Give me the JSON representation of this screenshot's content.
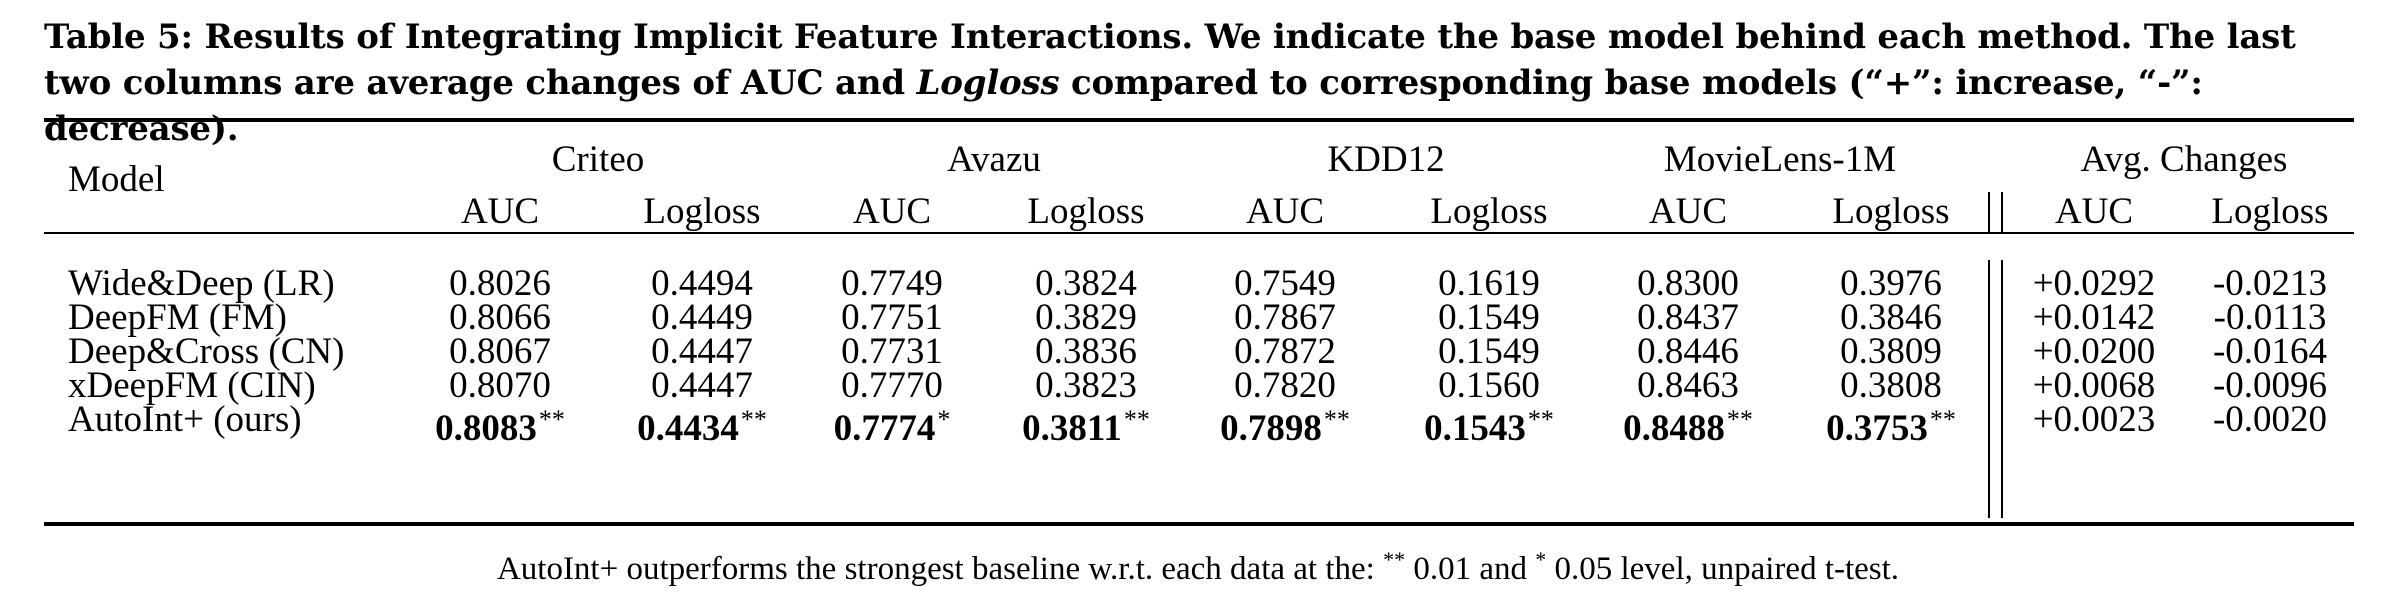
{
  "caption": {
    "part1": "Table 5: Results of Integrating Implicit Feature Interactions. We indicate the base model behind each method. The last two columns are average changes of AUC and ",
    "italic": "Logloss",
    "part2": " compared to corresponding base models (“+”: increase, “-”: decrease)."
  },
  "header": {
    "model": "Model",
    "groups": [
      "Criteo",
      "Avazu",
      "KDD12",
      "MovieLens-1M",
      "Avg. Changes"
    ],
    "metrics": [
      "AUC",
      "Logloss",
      "AUC",
      "Logloss",
      "AUC",
      "Logloss",
      "AUC",
      "Logloss",
      "AUC",
      "Logloss"
    ]
  },
  "rows": [
    {
      "model": "Wide&Deep (LR)",
      "values": [
        "0.8026",
        "0.4494",
        "0.7749",
        "0.3824",
        "0.7549",
        "0.1619",
        "0.8300",
        "0.3976",
        "+0.0292",
        "-0.0213"
      ],
      "sig": [
        "",
        "",
        "",
        "",
        "",
        "",
        "",
        "",
        "",
        ""
      ]
    },
    {
      "model": "DeepFM (FM)",
      "values": [
        "0.8066",
        "0.4449",
        "0.7751",
        "0.3829",
        "0.7867",
        "0.1549",
        "0.8437",
        "0.3846",
        "+0.0142",
        "-0.0113"
      ],
      "sig": [
        "",
        "",
        "",
        "",
        "",
        "",
        "",
        "",
        "",
        ""
      ]
    },
    {
      "model": "Deep&Cross (CN)",
      "values": [
        "0.8067",
        "0.4447",
        "0.7731",
        "0.3836",
        "0.7872",
        "0.1549",
        "0.8446",
        "0.3809",
        "+0.0200",
        "-0.0164"
      ],
      "sig": [
        "",
        "",
        "",
        "",
        "",
        "",
        "",
        "",
        "",
        ""
      ]
    },
    {
      "model": "xDeepFM (CIN)",
      "values": [
        "0.8070",
        "0.4447",
        "0.7770",
        "0.3823",
        "0.7820",
        "0.1560",
        "0.8463",
        "0.3808",
        "+0.0068",
        "-0.0096"
      ],
      "sig": [
        "",
        "",
        "",
        "",
        "",
        "",
        "",
        "",
        "",
        ""
      ]
    },
    {
      "model": "AutoInt+ (ours)",
      "values": [
        "0.8083",
        "0.4434",
        "0.7774",
        "0.3811",
        "0.7898",
        "0.1543",
        "0.8488",
        "0.3753",
        "+0.0023",
        "-0.0020"
      ],
      "sig": [
        "**",
        "**",
        "*",
        "**",
        "**",
        "**",
        "**",
        "**",
        "",
        ""
      ]
    }
  ],
  "footnote": {
    "part1": "AutoInt+ outperforms the strongest baseline w.r.t. each data at the: ",
    "sup1": "**",
    "part2": " 0.01 and ",
    "sup2": "*",
    "part3": " 0.05 level, unpaired t-test."
  }
}
